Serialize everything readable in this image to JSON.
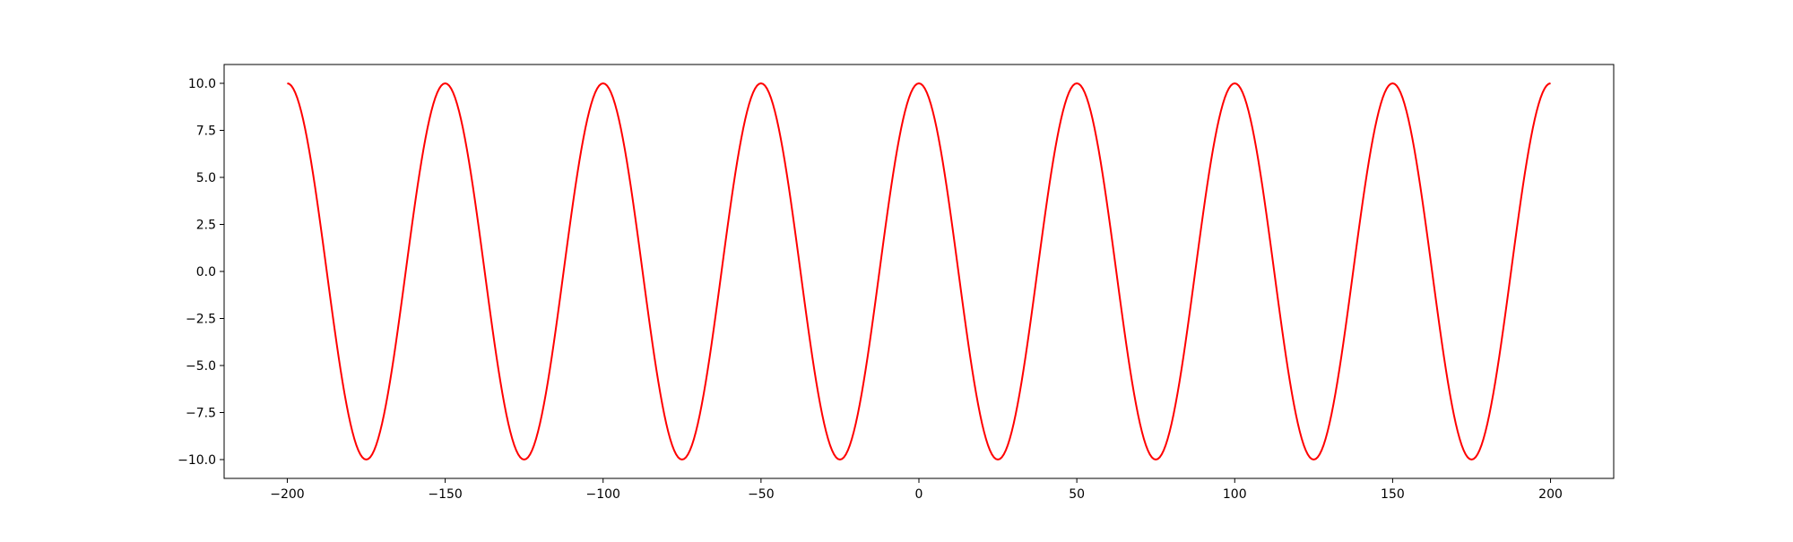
{
  "chart_data": {
    "type": "line",
    "title": "",
    "xlabel": "",
    "ylabel": "",
    "xlim": [
      -220,
      220
    ],
    "ylim": [
      -11,
      11
    ],
    "grid": false,
    "x_ticks": [
      -200,
      -150,
      -100,
      -50,
      0,
      50,
      100,
      150,
      200
    ],
    "x_tick_labels": [
      "−200",
      "−150",
      "−100",
      "−50",
      "0",
      "50",
      "100",
      "150",
      "200"
    ],
    "y_ticks": [
      -10,
      -7.5,
      -5,
      -2.5,
      0,
      2.5,
      5,
      7.5,
      10
    ],
    "y_tick_labels": [
      "−10.0",
      "−7.5",
      "−5.0",
      "−2.5",
      "0.0",
      "2.5",
      "5.0",
      "7.5",
      "10.0"
    ],
    "series": [
      {
        "color": "#ff0000",
        "x": [
          -200,
          -175,
          -150,
          -125,
          -100,
          -75,
          -50,
          -25,
          0,
          25,
          50,
          75,
          100,
          125,
          150,
          175,
          200
        ],
        "y": [
          10,
          -10,
          10,
          -10,
          10,
          -10,
          10,
          -10,
          10,
          -10,
          10,
          -10,
          10,
          -10,
          10,
          -10,
          10
        ]
      }
    ]
  }
}
